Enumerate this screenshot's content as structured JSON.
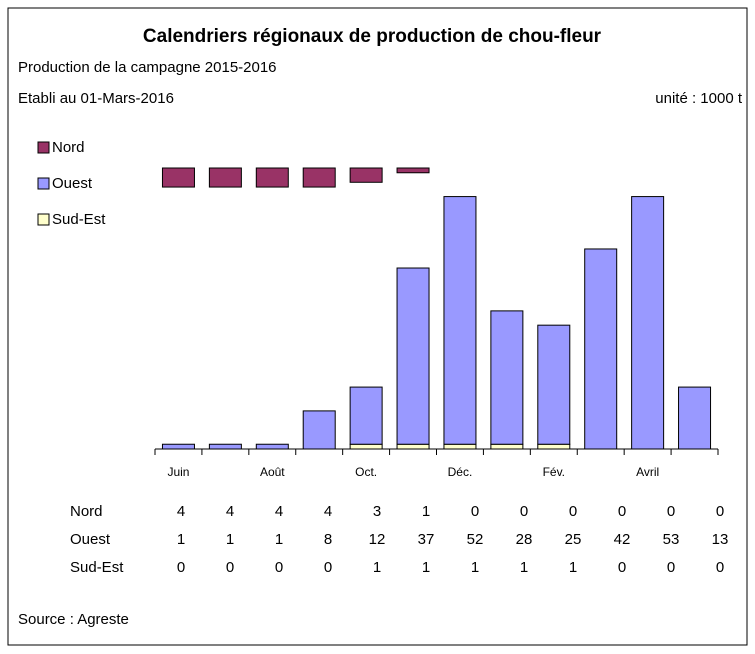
{
  "chart_data": {
    "type": "bar",
    "title": "Calendriers régionaux de production de chou-fleur",
    "subtitle": "Production de la campagne 2015-2016",
    "date_note": "Etabli au 01-Mars-2016",
    "unit_note": "unité : 1000 t",
    "source": "Source : Agreste",
    "categories": [
      "Juin",
      null,
      "Août",
      null,
      "Oct.",
      null,
      "Déc.",
      null,
      "Fév.",
      null,
      "Avril",
      null
    ],
    "series": [
      {
        "name": "Nord",
        "color": "#993366",
        "values": [
          4,
          4,
          4,
          4,
          3,
          1,
          0,
          0,
          0,
          0,
          0,
          0
        ]
      },
      {
        "name": "Ouest",
        "color": "#9999ff",
        "values": [
          1,
          1,
          1,
          8,
          12,
          37,
          52,
          28,
          25,
          42,
          53,
          13
        ]
      },
      {
        "name": "Sud-Est",
        "color": "#ffffcc",
        "values": [
          0,
          0,
          0,
          0,
          1,
          1,
          1,
          1,
          1,
          0,
          0,
          0
        ]
      }
    ],
    "ylim": [
      0,
      59
    ]
  }
}
